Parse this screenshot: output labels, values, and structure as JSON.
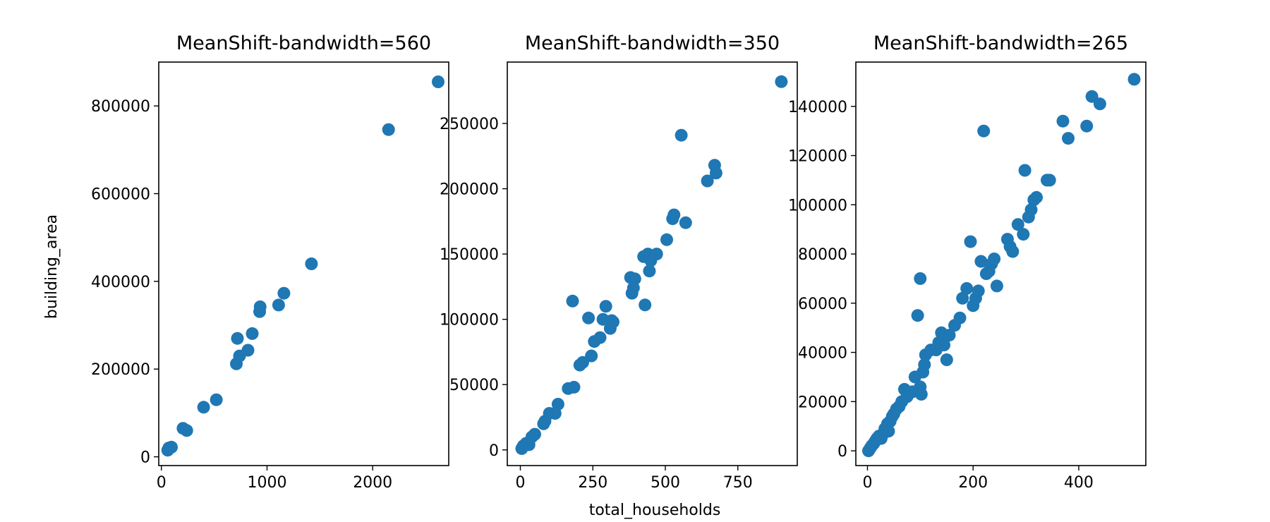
{
  "figure": {
    "xlabel": "total_households",
    "ylabel": "building_area"
  },
  "colors": {
    "point": "#1f77b4",
    "axes": "#000000",
    "background": "#ffffff"
  },
  "chart_data": [
    {
      "type": "scatter",
      "title": "MeanShift-bandwidth=560",
      "xlabel": "",
      "ylabel": "building_area",
      "xlim": [
        -25,
        2720
      ],
      "ylim": [
        -20000,
        900000
      ],
      "xticks": [
        0,
        1000,
        2000
      ],
      "yticks": [
        0,
        200000,
        400000,
        600000,
        800000
      ],
      "grid": false,
      "points": [
        [
          60,
          15000
        ],
        [
          70,
          20000
        ],
        [
          95,
          22000
        ],
        [
          205,
          65000
        ],
        [
          240,
          60000
        ],
        [
          400,
          113000
        ],
        [
          520,
          130000
        ],
        [
          710,
          212000
        ],
        [
          720,
          270000
        ],
        [
          740,
          230000
        ],
        [
          820,
          243000
        ],
        [
          860,
          281000
        ],
        [
          930,
          331000
        ],
        [
          935,
          342000
        ],
        [
          1110,
          346000
        ],
        [
          1160,
          373000
        ],
        [
          1420,
          440000
        ],
        [
          2150,
          746000
        ],
        [
          2620,
          855000
        ]
      ]
    },
    {
      "type": "scatter",
      "title": "MeanShift-bandwidth=350",
      "xlabel": "total_households",
      "ylabel": "",
      "xlim": [
        -45,
        955
      ],
      "ylim": [
        -12000,
        297000
      ],
      "xticks": [
        0,
        250,
        500,
        750
      ],
      "yticks": [
        0,
        50000,
        100000,
        150000,
        200000,
        250000
      ],
      "grid": false,
      "points": [
        [
          5,
          1000
        ],
        [
          10,
          3000
        ],
        [
          20,
          5000
        ],
        [
          30,
          4000
        ],
        [
          40,
          10000
        ],
        [
          50,
          12000
        ],
        [
          80,
          20000
        ],
        [
          85,
          22000
        ],
        [
          100,
          28000
        ],
        [
          120,
          28000
        ],
        [
          130,
          35000
        ],
        [
          165,
          47000
        ],
        [
          180,
          114000
        ],
        [
          185,
          48000
        ],
        [
          205,
          65000
        ],
        [
          215,
          67000
        ],
        [
          235,
          101000
        ],
        [
          245,
          72000
        ],
        [
          255,
          83000
        ],
        [
          275,
          86000
        ],
        [
          285,
          100000
        ],
        [
          295,
          110000
        ],
        [
          310,
          93000
        ],
        [
          315,
          99000
        ],
        [
          320,
          98000
        ],
        [
          380,
          132000
        ],
        [
          385,
          120000
        ],
        [
          390,
          124000
        ],
        [
          395,
          131000
        ],
        [
          425,
          148000
        ],
        [
          430,
          111000
        ],
        [
          440,
          150000
        ],
        [
          445,
          137000
        ],
        [
          450,
          145000
        ],
        [
          470,
          150000
        ],
        [
          505,
          161000
        ],
        [
          525,
          177000
        ],
        [
          530,
          180000
        ],
        [
          555,
          241000
        ],
        [
          570,
          174000
        ],
        [
          645,
          206000
        ],
        [
          670,
          218000
        ],
        [
          675,
          212000
        ],
        [
          900,
          282000
        ]
      ]
    },
    {
      "type": "scatter",
      "title": "MeanShift-bandwidth=265",
      "xlabel": "",
      "ylabel": "",
      "xlim": [
        -22,
        527
      ],
      "ylim": [
        -6000,
        158000
      ],
      "xticks": [
        0,
        200,
        400
      ],
      "yticks": [
        0,
        20000,
        40000,
        60000,
        80000,
        100000,
        120000,
        140000
      ],
      "grid": false,
      "points": [
        [
          2,
          0
        ],
        [
          5,
          1000
        ],
        [
          8,
          2000
        ],
        [
          12,
          3000
        ],
        [
          15,
          4000
        ],
        [
          18,
          5000
        ],
        [
          22,
          6000
        ],
        [
          26,
          5000
        ],
        [
          30,
          7000
        ],
        [
          33,
          9000
        ],
        [
          38,
          11000
        ],
        [
          40,
          8000
        ],
        [
          43,
          12000
        ],
        [
          47,
          14000
        ],
        [
          50,
          15000
        ],
        [
          55,
          17000
        ],
        [
          60,
          18000
        ],
        [
          65,
          20000
        ],
        [
          70,
          25000
        ],
        [
          75,
          22000
        ],
        [
          85,
          24000
        ],
        [
          90,
          30000
        ],
        [
          95,
          55000
        ],
        [
          100,
          70000
        ],
        [
          100,
          26000
        ],
        [
          102,
          23000
        ],
        [
          105,
          32000
        ],
        [
          108,
          35000
        ],
        [
          110,
          39000
        ],
        [
          120,
          41000
        ],
        [
          130,
          41000
        ],
        [
          135,
          44000
        ],
        [
          140,
          48000
        ],
        [
          145,
          43000
        ],
        [
          150,
          37000
        ],
        [
          155,
          47000
        ],
        [
          165,
          51000
        ],
        [
          175,
          54000
        ],
        [
          180,
          62000
        ],
        [
          188,
          66000
        ],
        [
          195,
          85000
        ],
        [
          200,
          59000
        ],
        [
          205,
          62000
        ],
        [
          210,
          65000
        ],
        [
          215,
          77000
        ],
        [
          220,
          130000
        ],
        [
          225,
          72000
        ],
        [
          230,
          73000
        ],
        [
          235,
          76000
        ],
        [
          240,
          78000
        ],
        [
          245,
          67000
        ],
        [
          265,
          86000
        ],
        [
          270,
          83000
        ],
        [
          275,
          81000
        ],
        [
          285,
          92000
        ],
        [
          295,
          88000
        ],
        [
          298,
          114000
        ],
        [
          305,
          95000
        ],
        [
          310,
          98000
        ],
        [
          315,
          102000
        ],
        [
          320,
          103000
        ],
        [
          340,
          110000
        ],
        [
          345,
          110000
        ],
        [
          370,
          134000
        ],
        [
          380,
          127000
        ],
        [
          415,
          132000
        ],
        [
          425,
          144000
        ],
        [
          440,
          141000
        ],
        [
          505,
          151000
        ]
      ]
    }
  ]
}
